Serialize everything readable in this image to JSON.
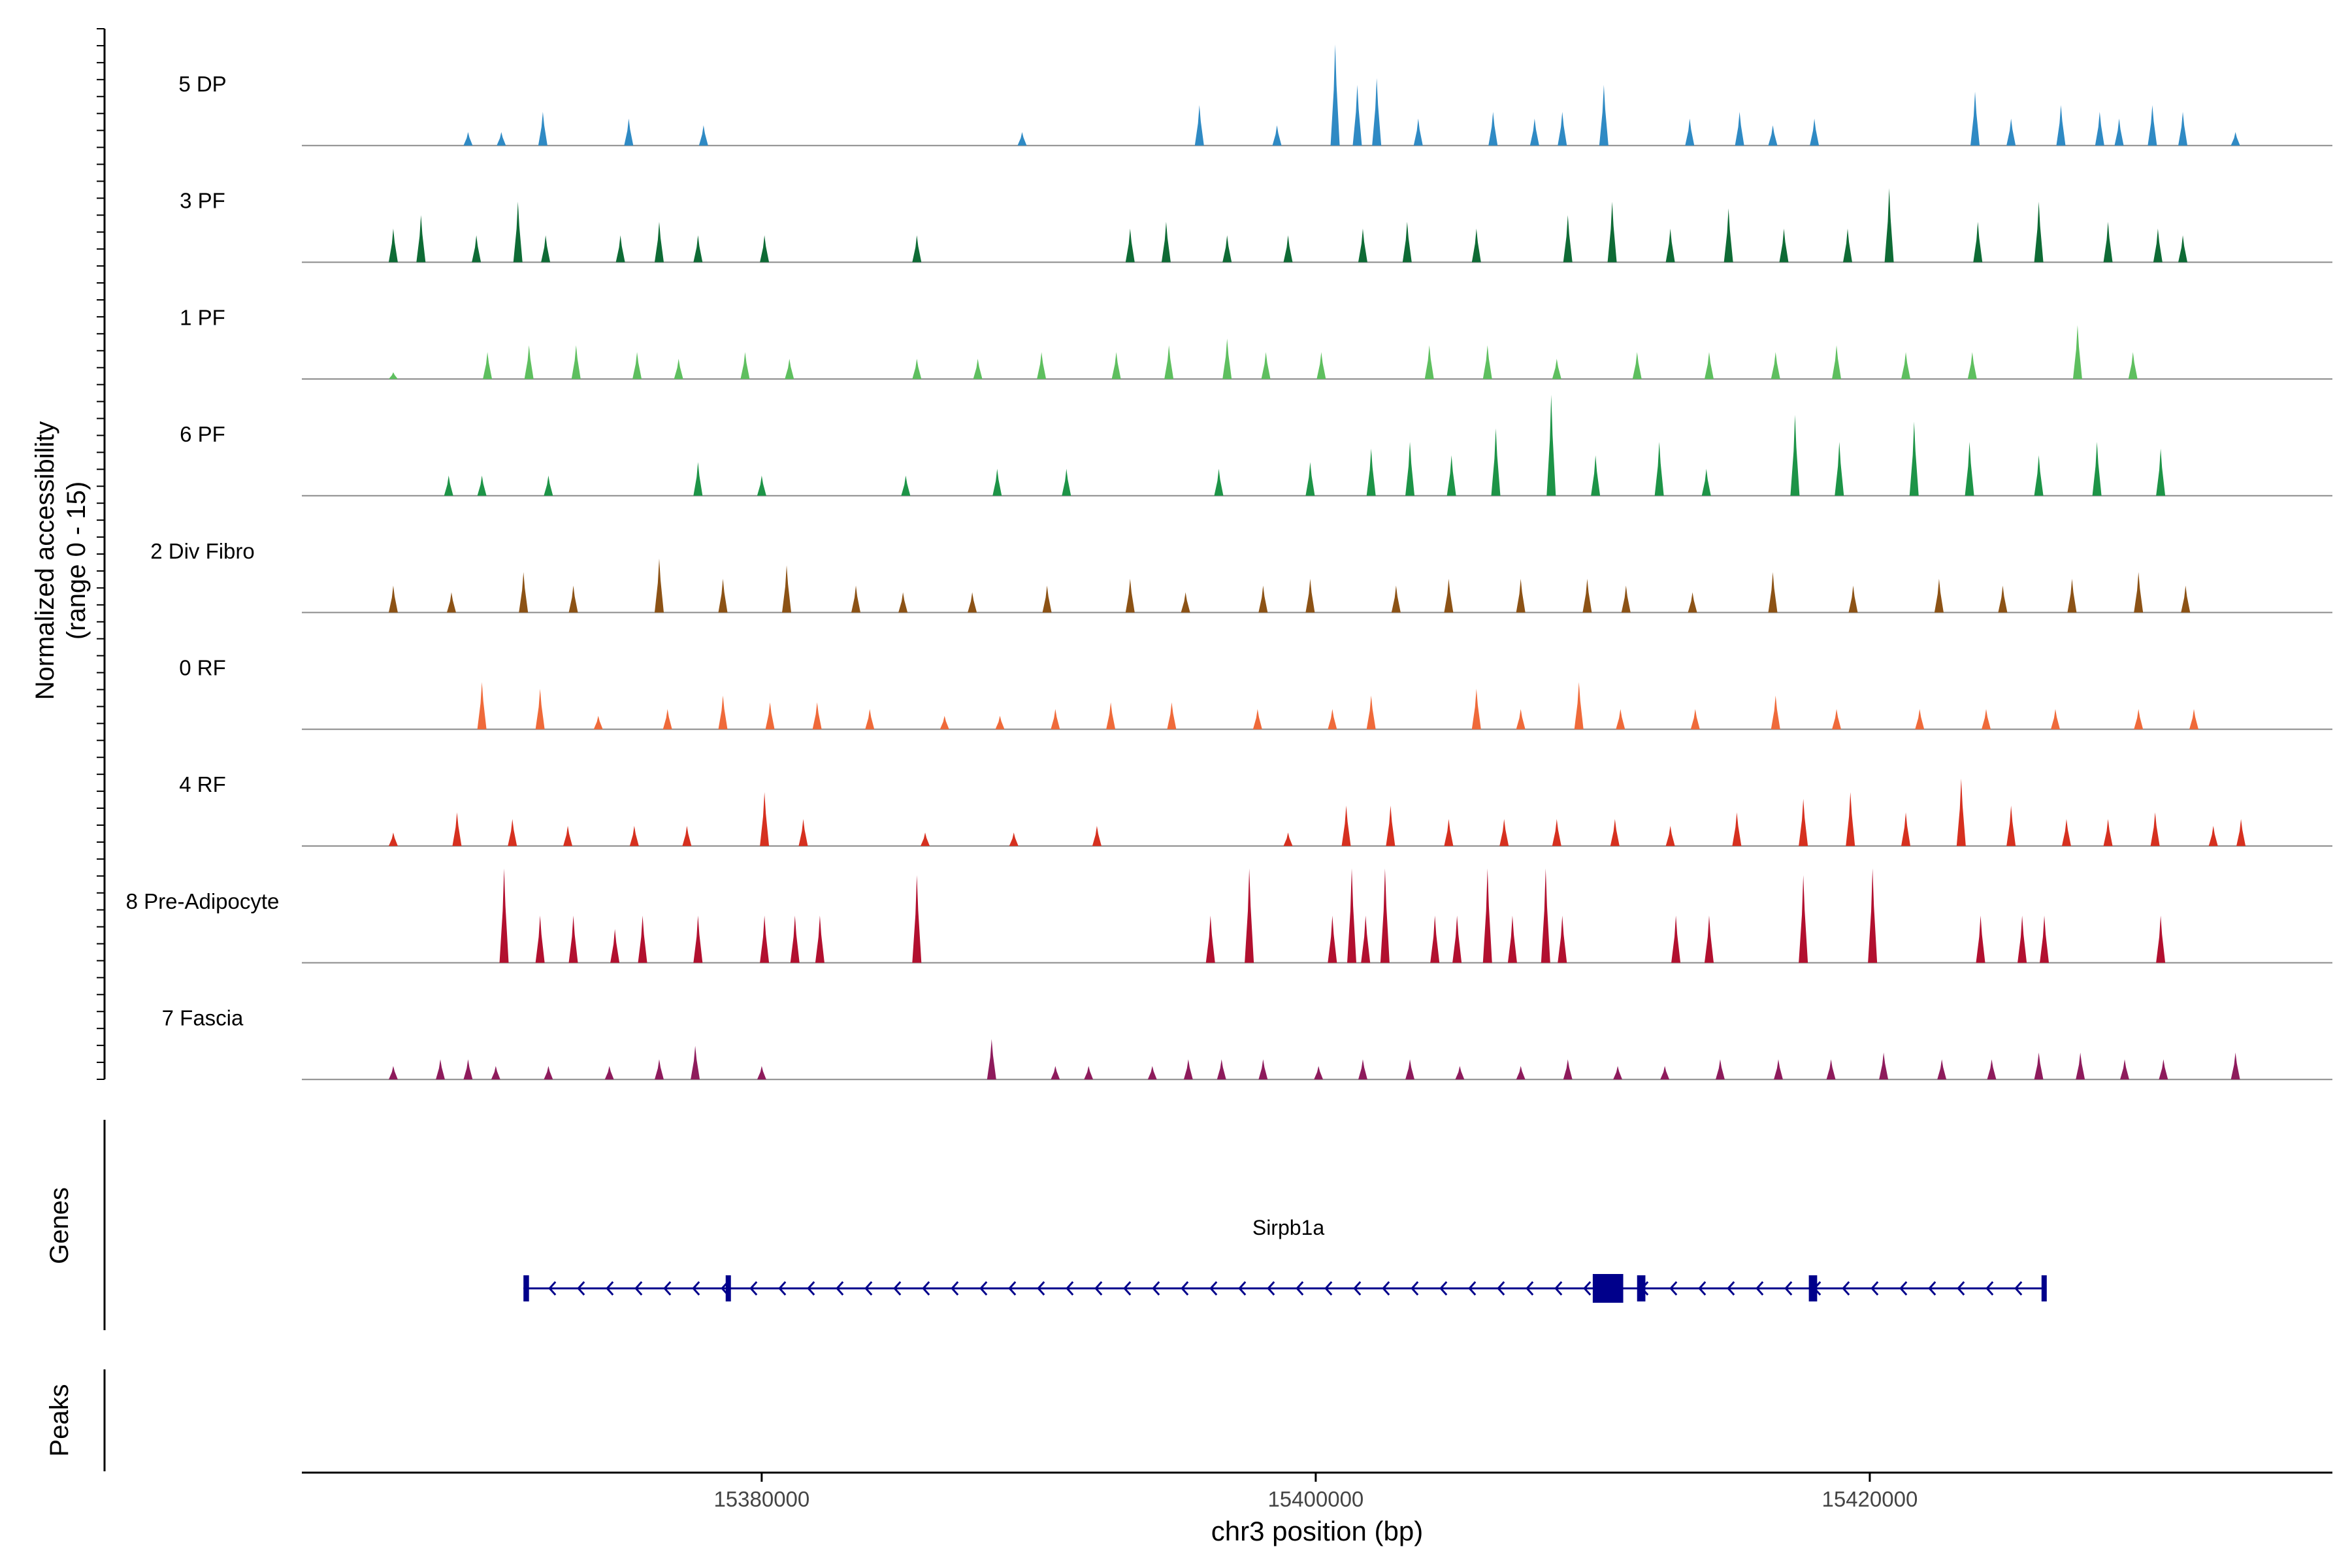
{
  "chart_data": {
    "type": "coverage",
    "title": "",
    "ylabel_line1": "Normalized accessibility",
    "ylabel_line2": "(range 0 - 15)",
    "ylim": [
      0,
      15
    ],
    "xlabel": "chr3 position (bp)",
    "xlim": [
      15363400,
      15436700
    ],
    "x_ticks": [
      15380000,
      15400000,
      15420000
    ],
    "x_tick_labels": [
      "15380000",
      "15400000",
      "15420000"
    ],
    "tracks": [
      {
        "name": "5 DP",
        "color": "#2F8AC4",
        "peaks": [
          [
            15369400,
            2
          ],
          [
            15370600,
            2
          ],
          [
            15372100,
            5
          ],
          [
            15375200,
            4
          ],
          [
            15377900,
            3
          ],
          [
            15389400,
            2
          ],
          [
            15395800,
            6
          ],
          [
            15398600,
            3
          ],
          [
            15400700,
            15
          ],
          [
            15401500,
            9
          ],
          [
            15402200,
            10
          ],
          [
            15403700,
            4
          ],
          [
            15406400,
            5
          ],
          [
            15407900,
            4
          ],
          [
            15408900,
            5
          ],
          [
            15410400,
            9
          ],
          [
            15413500,
            4
          ],
          [
            15415300,
            5
          ],
          [
            15416500,
            3
          ],
          [
            15418000,
            4
          ],
          [
            15423800,
            8
          ],
          [
            15425100,
            4
          ],
          [
            15426900,
            6
          ],
          [
            15428300,
            5
          ],
          [
            15429000,
            4
          ],
          [
            15430200,
            6
          ],
          [
            15431300,
            5
          ],
          [
            15433200,
            2
          ]
        ]
      },
      {
        "name": "3 PF",
        "color": "#0E6B35",
        "peaks": [
          [
            15366700,
            5
          ],
          [
            15367700,
            7
          ],
          [
            15369700,
            4
          ],
          [
            15371200,
            9
          ],
          [
            15372200,
            4
          ],
          [
            15374900,
            4
          ],
          [
            15376300,
            6
          ],
          [
            15377700,
            4
          ],
          [
            15380100,
            4
          ],
          [
            15385600,
            4
          ],
          [
            15393300,
            5
          ],
          [
            15394600,
            6
          ],
          [
            15396800,
            4
          ],
          [
            15399000,
            4
          ],
          [
            15401700,
            5
          ],
          [
            15403300,
            6
          ],
          [
            15405800,
            5
          ],
          [
            15409100,
            7
          ],
          [
            15410700,
            9
          ],
          [
            15412800,
            5
          ],
          [
            15414900,
            8
          ],
          [
            15416900,
            5
          ],
          [
            15419200,
            5
          ],
          [
            15420700,
            11
          ],
          [
            15423900,
            6
          ],
          [
            15426100,
            9
          ],
          [
            15428600,
            6
          ],
          [
            15430400,
            5
          ],
          [
            15431300,
            4
          ]
        ]
      },
      {
        "name": "1 PF",
        "color": "#5EBF5F",
        "peaks": [
          [
            15366700,
            1
          ],
          [
            15370100,
            4
          ],
          [
            15371600,
            5
          ],
          [
            15373300,
            5
          ],
          [
            15375500,
            4
          ],
          [
            15377000,
            3
          ],
          [
            15379400,
            4
          ],
          [
            15381000,
            3
          ],
          [
            15385600,
            3
          ],
          [
            15387800,
            3
          ],
          [
            15390100,
            4
          ],
          [
            15392800,
            4
          ],
          [
            15394700,
            5
          ],
          [
            15396800,
            6
          ],
          [
            15398200,
            4
          ],
          [
            15400200,
            4
          ],
          [
            15404100,
            5
          ],
          [
            15406200,
            5
          ],
          [
            15408700,
            3
          ],
          [
            15411600,
            4
          ],
          [
            15414200,
            4
          ],
          [
            15416600,
            4
          ],
          [
            15418800,
            5
          ],
          [
            15421300,
            4
          ],
          [
            15423700,
            4
          ],
          [
            15427500,
            8
          ],
          [
            15429500,
            4
          ]
        ]
      },
      {
        "name": "6 PF",
        "color": "#1D9447",
        "peaks": [
          [
            15368700,
            3
          ],
          [
            15369900,
            3
          ],
          [
            15372300,
            3
          ],
          [
            15377700,
            5
          ],
          [
            15380000,
            3
          ],
          [
            15385200,
            3
          ],
          [
            15388500,
            4
          ],
          [
            15391000,
            4
          ],
          [
            15396500,
            4
          ],
          [
            15399800,
            5
          ],
          [
            15402000,
            7
          ],
          [
            15403400,
            8
          ],
          [
            15404900,
            6
          ],
          [
            15406500,
            10
          ],
          [
            15408500,
            15
          ],
          [
            15410100,
            6
          ],
          [
            15412400,
            8
          ],
          [
            15414100,
            4
          ],
          [
            15417300,
            12
          ],
          [
            15418900,
            8
          ],
          [
            15421600,
            11
          ],
          [
            15423600,
            8
          ],
          [
            15426100,
            6
          ],
          [
            15428200,
            8
          ],
          [
            15430500,
            7
          ]
        ]
      },
      {
        "name": "2 Div Fibro",
        "color": "#8C5215",
        "peaks": [
          [
            15366700,
            4
          ],
          [
            15368800,
            3
          ],
          [
            15371400,
            6
          ],
          [
            15373200,
            4
          ],
          [
            15376300,
            8
          ],
          [
            15378600,
            5
          ],
          [
            15380900,
            7
          ],
          [
            15383400,
            4
          ],
          [
            15385100,
            3
          ],
          [
            15387600,
            3
          ],
          [
            15390300,
            4
          ],
          [
            15393300,
            5
          ],
          [
            15395300,
            3
          ],
          [
            15398100,
            4
          ],
          [
            15399800,
            5
          ],
          [
            15402900,
            4
          ],
          [
            15404800,
            5
          ],
          [
            15407400,
            5
          ],
          [
            15409800,
            5
          ],
          [
            15411200,
            4
          ],
          [
            15413600,
            3
          ],
          [
            15416500,
            6
          ],
          [
            15419400,
            4
          ],
          [
            15422500,
            5
          ],
          [
            15424800,
            4
          ],
          [
            15427300,
            5
          ],
          [
            15429700,
            6
          ],
          [
            15431400,
            4
          ]
        ]
      },
      {
        "name": "0 RF",
        "color": "#EF6A3A",
        "peaks": [
          [
            15369900,
            7
          ],
          [
            15372000,
            6
          ],
          [
            15374100,
            2
          ],
          [
            15376600,
            3
          ],
          [
            15378600,
            5
          ],
          [
            15380300,
            4
          ],
          [
            15382000,
            4
          ],
          [
            15383900,
            3
          ],
          [
            15386600,
            2
          ],
          [
            15388600,
            2
          ],
          [
            15390600,
            3
          ],
          [
            15392600,
            4
          ],
          [
            15394800,
            4
          ],
          [
            15397900,
            3
          ],
          [
            15400600,
            3
          ],
          [
            15402000,
            5
          ],
          [
            15405800,
            6
          ],
          [
            15407400,
            3
          ],
          [
            15409500,
            7
          ],
          [
            15411000,
            3
          ],
          [
            15413700,
            3
          ],
          [
            15416600,
            5
          ],
          [
            15418800,
            3
          ],
          [
            15421800,
            3
          ],
          [
            15424200,
            3
          ],
          [
            15426700,
            3
          ],
          [
            15429700,
            3
          ],
          [
            15431700,
            3
          ]
        ]
      },
      {
        "name": "4 RF",
        "color": "#D6301F",
        "peaks": [
          [
            15366700,
            2
          ],
          [
            15369000,
            5
          ],
          [
            15371000,
            4
          ],
          [
            15373000,
            3
          ],
          [
            15375400,
            3
          ],
          [
            15377300,
            3
          ],
          [
            15380100,
            8
          ],
          [
            15381500,
            4
          ],
          [
            15385900,
            2
          ],
          [
            15389100,
            2
          ],
          [
            15392100,
            3
          ],
          [
            15399000,
            2
          ],
          [
            15401100,
            6
          ],
          [
            15402700,
            6
          ],
          [
            15404800,
            4
          ],
          [
            15406800,
            4
          ],
          [
            15408700,
            4
          ],
          [
            15410800,
            4
          ],
          [
            15412800,
            3
          ],
          [
            15415200,
            5
          ],
          [
            15417600,
            7
          ],
          [
            15419300,
            8
          ],
          [
            15421300,
            5
          ],
          [
            15423300,
            10
          ],
          [
            15425100,
            6
          ],
          [
            15427100,
            4
          ],
          [
            15428600,
            4
          ],
          [
            15430300,
            5
          ],
          [
            15432400,
            3
          ],
          [
            15433400,
            4
          ]
        ]
      },
      {
        "name": "8 Pre-Adipocyte",
        "color": "#B2102F",
        "peaks": [
          [
            15370700,
            14
          ],
          [
            15372000,
            7
          ],
          [
            15373200,
            7
          ],
          [
            15374700,
            5
          ],
          [
            15375700,
            7
          ],
          [
            15377700,
            7
          ],
          [
            15380100,
            7
          ],
          [
            15381200,
            7
          ],
          [
            15382100,
            7
          ],
          [
            15385600,
            13
          ],
          [
            15396200,
            7
          ],
          [
            15397600,
            14
          ],
          [
            15400600,
            7
          ],
          [
            15401300,
            14
          ],
          [
            15401800,
            7
          ],
          [
            15402500,
            14
          ],
          [
            15404300,
            7
          ],
          [
            15405100,
            7
          ],
          [
            15406200,
            14
          ],
          [
            15407100,
            7
          ],
          [
            15408300,
            14
          ],
          [
            15408900,
            7
          ],
          [
            15413000,
            7
          ],
          [
            15414200,
            7
          ],
          [
            15417600,
            13
          ],
          [
            15420100,
            14
          ],
          [
            15424000,
            7
          ],
          [
            15425500,
            7
          ],
          [
            15426300,
            7
          ],
          [
            15430500,
            7
          ]
        ]
      },
      {
        "name": "7 Fascia",
        "color": "#8E1B5C",
        "peaks": [
          [
            15366700,
            2
          ],
          [
            15368400,
            3
          ],
          [
            15369400,
            3
          ],
          [
            15370400,
            2
          ],
          [
            15372300,
            2
          ],
          [
            15374500,
            2
          ],
          [
            15376300,
            3
          ],
          [
            15377600,
            5
          ],
          [
            15380000,
            2
          ],
          [
            15388300,
            6
          ],
          [
            15390600,
            2
          ],
          [
            15391800,
            2
          ],
          [
            15394100,
            2
          ],
          [
            15395400,
            3
          ],
          [
            15396600,
            3
          ],
          [
            15398100,
            3
          ],
          [
            15400100,
            2
          ],
          [
            15401700,
            3
          ],
          [
            15403400,
            3
          ],
          [
            15405200,
            2
          ],
          [
            15407400,
            2
          ],
          [
            15409100,
            3
          ],
          [
            15410900,
            2
          ],
          [
            15412600,
            2
          ],
          [
            15414600,
            3
          ],
          [
            15416700,
            3
          ],
          [
            15418600,
            3
          ],
          [
            15420500,
            4
          ],
          [
            15422600,
            3
          ],
          [
            15424400,
            3
          ],
          [
            15426100,
            4
          ],
          [
            15427600,
            4
          ],
          [
            15429200,
            3
          ],
          [
            15430600,
            3
          ],
          [
            15433200,
            4
          ]
        ]
      }
    ],
    "genes_label": "Genes",
    "peaks_label": "Peaks",
    "gene": {
      "name": "Sirpb1a",
      "strand": "-",
      "start": 15371400,
      "end": 15426300,
      "exons": [
        [
          15371400,
          15371600
        ],
        [
          15378700,
          15378800
        ],
        [
          15410000,
          15411100
        ],
        [
          15411600,
          15411900
        ],
        [
          15417800,
          15418100
        ],
        [
          15426200,
          15426300
        ]
      ]
    },
    "colors": {
      "baseline": "#8a8a8a",
      "gene": "#00008B",
      "axis": "#000000",
      "tick_label": "#444444"
    }
  }
}
